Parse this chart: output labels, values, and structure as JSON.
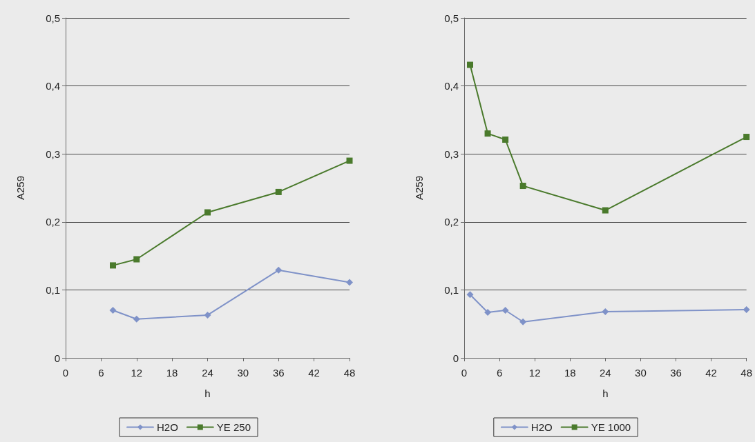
{
  "chart_data": [
    {
      "type": "line",
      "xlabel": "h",
      "ylabel": "A259",
      "xlim": [
        0,
        48
      ],
      "xticks": [
        0,
        6,
        12,
        18,
        24,
        30,
        36,
        42,
        48
      ],
      "ylim": [
        0,
        0.5
      ],
      "yticks": [
        {
          "value": 0,
          "label": "0"
        },
        {
          "value": 0.1,
          "label": "0,1"
        },
        {
          "value": 0.2,
          "label": "0,2"
        },
        {
          "value": 0.3,
          "label": "0,3"
        },
        {
          "value": 0.4,
          "label": "0,4"
        },
        {
          "value": 0.5,
          "label": "0,5"
        }
      ],
      "grid": "y",
      "legend": "bottom",
      "series": [
        {
          "name": "H2O",
          "color": "#7f92c8",
          "marker": "diamond",
          "x": [
            8,
            12,
            24,
            36,
            48
          ],
          "values": [
            0.07,
            0.057,
            0.063,
            0.129,
            0.111
          ]
        },
        {
          "name": "YE 250",
          "color": "#4a7a2c",
          "marker": "square",
          "x": [
            8,
            12,
            24,
            36,
            48
          ],
          "values": [
            0.136,
            0.145,
            0.214,
            0.244,
            0.29
          ]
        }
      ]
    },
    {
      "type": "line",
      "xlabel": "h",
      "ylabel": "A259",
      "xlim": [
        0,
        48
      ],
      "xticks": [
        0,
        6,
        12,
        18,
        24,
        30,
        36,
        42,
        48
      ],
      "ylim": [
        0,
        0.5
      ],
      "yticks": [
        {
          "value": 0,
          "label": "0"
        },
        {
          "value": 0.1,
          "label": "0,1"
        },
        {
          "value": 0.2,
          "label": "0,2"
        },
        {
          "value": 0.3,
          "label": "0,3"
        },
        {
          "value": 0.4,
          "label": "0,4"
        },
        {
          "value": 0.5,
          "label": "0,5"
        }
      ],
      "grid": "y",
      "legend": "bottom",
      "series": [
        {
          "name": "H2O",
          "color": "#7f92c8",
          "marker": "diamond",
          "x": [
            1,
            4,
            7,
            10,
            24,
            48
          ],
          "values": [
            0.093,
            0.067,
            0.07,
            0.053,
            0.068,
            0.071
          ]
        },
        {
          "name": "YE 1000",
          "color": "#4a7a2c",
          "marker": "square",
          "x": [
            1,
            4,
            7,
            10,
            24,
            48
          ],
          "values": [
            0.431,
            0.33,
            0.321,
            0.253,
            0.217,
            0.325
          ]
        }
      ]
    }
  ]
}
